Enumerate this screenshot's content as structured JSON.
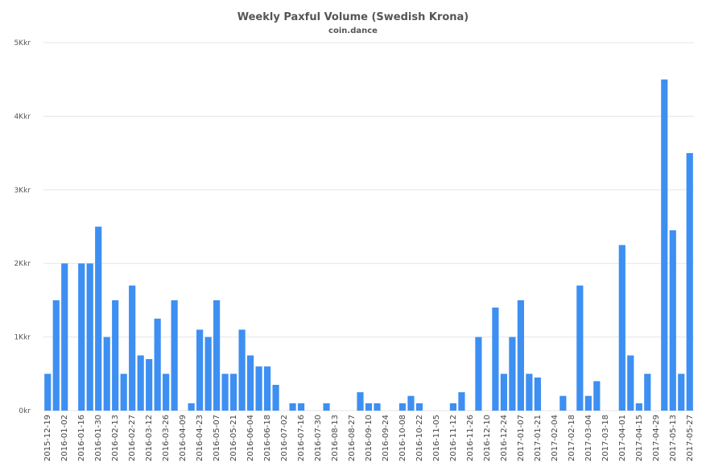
{
  "chart_data": {
    "type": "bar",
    "title": "Weekly Paxful Volume (Swedish Krona)",
    "subtitle": "coin.dance",
    "xlabel": "",
    "ylabel": "",
    "ylim": [
      0,
      5000
    ],
    "yticks": [
      0,
      1000,
      2000,
      3000,
      4000,
      5000
    ],
    "ytick_labels": [
      "0kr",
      "1Kkr",
      "2Kkr",
      "3Kkr",
      "4Kkr",
      "5Kkr"
    ],
    "grid": true,
    "legend": "none",
    "bar_color": "#3d8ff2",
    "x_tick_labels": [
      "2015-12-19",
      "2016-01-02",
      "2016-01-16",
      "2016-01-30",
      "2016-02-13",
      "2016-02-27",
      "2016-03-12",
      "2016-03-26",
      "2016-04-09",
      "2016-04-23",
      "2016-05-07",
      "2016-05-21",
      "2016-06-04",
      "2016-06-18",
      "2016-07-02",
      "2016-07-16",
      "2016-07-30",
      "2016-08-13",
      "2016-08-27",
      "2016-09-10",
      "2016-09-24",
      "2016-10-08",
      "2016-10-22",
      "2016-11-05",
      "2016-11-12",
      "2016-11-26",
      "2016-12-10",
      "2016-12-24",
      "2017-01-07",
      "2017-01-21",
      "2017-02-04",
      "2017-02-18",
      "2017-03-04",
      "2017-03-18",
      "2017-04-01",
      "2017-04-15",
      "2017-04-29",
      "2017-05-13",
      "2017-05-27"
    ],
    "values": [
      500,
      1500,
      2000,
      0,
      2000,
      2000,
      2500,
      1000,
      1500,
      500,
      1700,
      750,
      700,
      1250,
      500,
      1500,
      0,
      100,
      1100,
      1000,
      1500,
      500,
      500,
      1100,
      750,
      600,
      600,
      350,
      0,
      100,
      100,
      0,
      0,
      100,
      0,
      0,
      0,
      250,
      100,
      100,
      0,
      0,
      100,
      200,
      100,
      0,
      0,
      0,
      100,
      250,
      0,
      1000,
      0,
      1400,
      500,
      1000,
      1500,
      500,
      450,
      0,
      0,
      200,
      0,
      1700,
      200,
      400,
      0,
      0,
      2250,
      750,
      100,
      500,
      0,
      4500,
      2450,
      500,
      3500
    ]
  }
}
